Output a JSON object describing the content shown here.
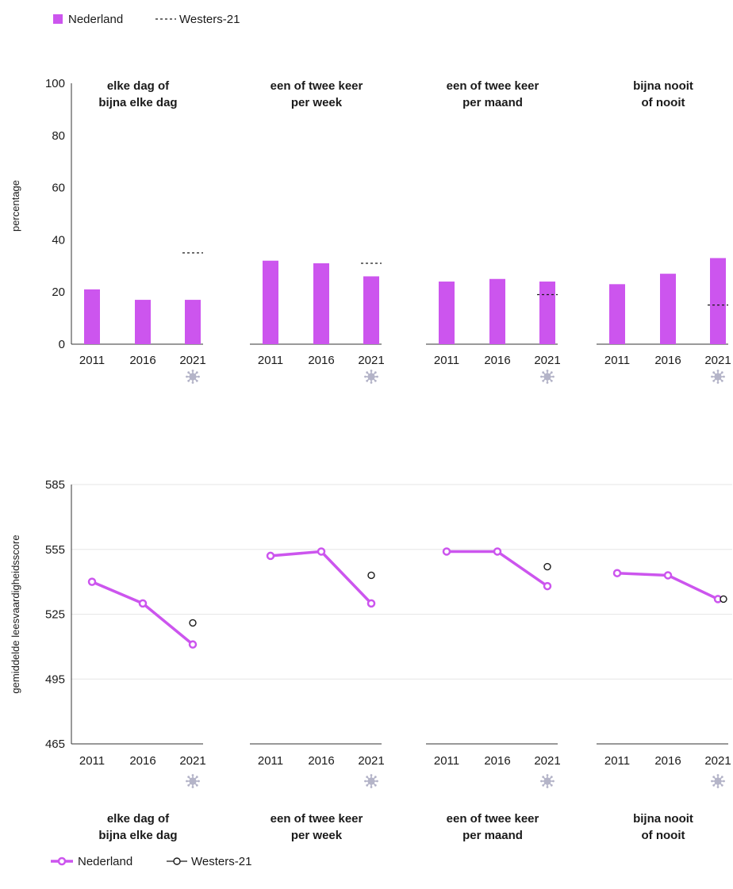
{
  "colors": {
    "nederland": "#cc55ee",
    "westers": "#1a1a1a",
    "axis": "#333333",
    "grid": "#e6e6e6",
    "marker": "#b4b4c8"
  },
  "legend_top": {
    "nederland": "Nederland",
    "westers": "Westers-21"
  },
  "legend_bottom": {
    "nederland": "Nederland",
    "westers": "Westers-21"
  },
  "marker_icon": "covid-virus-icon",
  "chart_data": [
    {
      "type": "bar",
      "ylabel": "percentage",
      "ylim": [
        0,
        100
      ],
      "yticks": [
        "0",
        "20",
        "40",
        "60",
        "80",
        "100"
      ],
      "categories": [
        "2011",
        "2016",
        "2021"
      ],
      "panels": [
        {
          "title": [
            "elke dag of",
            "bijna elke dag"
          ],
          "values": [
            21,
            17,
            17
          ],
          "westers_2021": 35
        },
        {
          "title": [
            "een of twee keer",
            "per week"
          ],
          "values": [
            32,
            31,
            26
          ],
          "westers_2021": 31
        },
        {
          "title": [
            "een of twee keer",
            "per maand"
          ],
          "values": [
            24,
            25,
            24
          ],
          "westers_2021": 19
        },
        {
          "title": [
            "bijna nooit",
            "of nooit"
          ],
          "values": [
            23,
            27,
            33
          ],
          "westers_2021": 15
        }
      ],
      "marked_category": "2021",
      "grid": false
    },
    {
      "type": "line",
      "ylabel": "gemiddelde leesvaardigheidsscore",
      "ylim": [
        465,
        585
      ],
      "yticks": [
        "465",
        "495",
        "525",
        "555",
        "585"
      ],
      "categories": [
        "2011",
        "2016",
        "2021"
      ],
      "panels": [
        {
          "title": [
            "elke dag of",
            "bijna elke dag"
          ],
          "values": [
            540,
            530,
            511
          ],
          "westers_2021": 521
        },
        {
          "title": [
            "een of twee keer",
            "per week"
          ],
          "values": [
            552,
            554,
            530
          ],
          "westers_2021": 543
        },
        {
          "title": [
            "een of twee keer",
            "per maand"
          ],
          "values": [
            554,
            554,
            538
          ],
          "westers_2021": 547
        },
        {
          "title": [
            "bijna nooit",
            "of nooit"
          ],
          "values": [
            544,
            543,
            532
          ],
          "westers_2021": 532
        }
      ],
      "marked_category": "2021",
      "grid": true
    }
  ]
}
